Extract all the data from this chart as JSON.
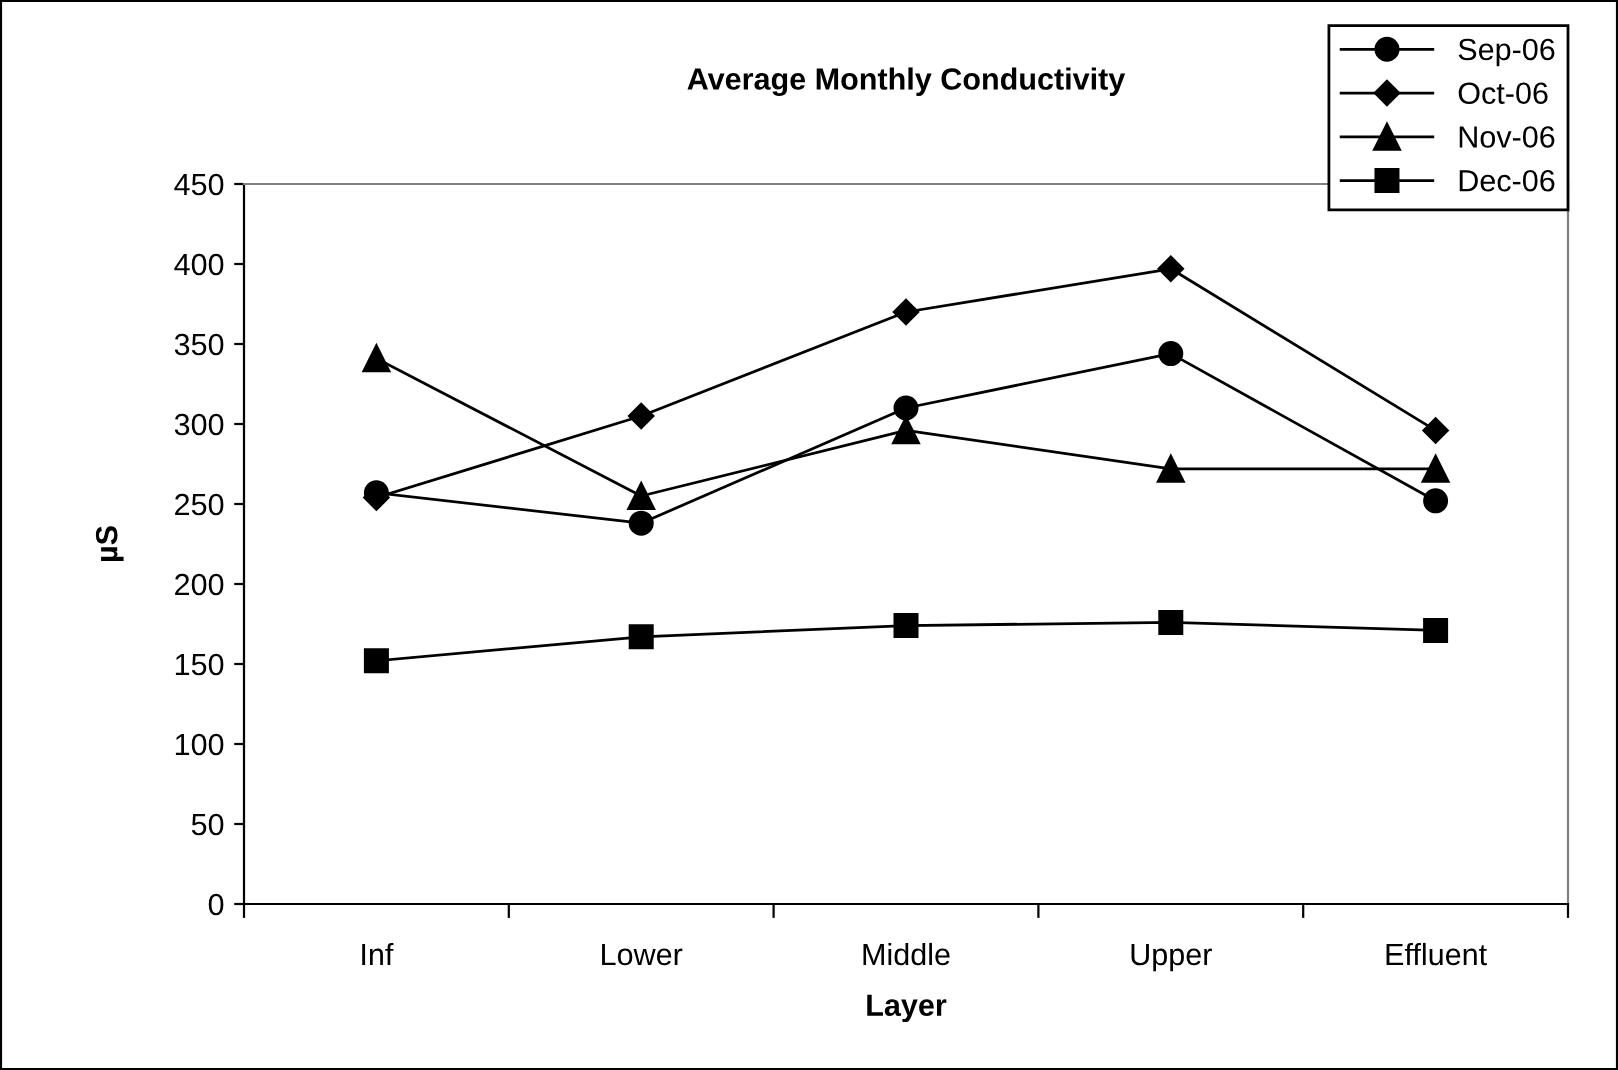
{
  "chart_data": {
    "type": "line",
    "title": "Average Monthly Conductivity",
    "xlabel": "Layer",
    "ylabel": "µS",
    "categories": [
      "Inf",
      "Lower",
      "Middle",
      "Upper",
      "Effluent"
    ],
    "series": [
      {
        "name": "Sep-06",
        "color": "#000000",
        "marker": "circle",
        "values": [
          257,
          238,
          310,
          344,
          252
        ]
      },
      {
        "name": "Oct-06",
        "color": "#000000",
        "marker": "diamond",
        "values": [
          254,
          305,
          370,
          397,
          296
        ]
      },
      {
        "name": "Nov-06",
        "color": "#000000",
        "marker": "triangle",
        "values": [
          341,
          255,
          296,
          272,
          272
        ]
      },
      {
        "name": "Dec-06",
        "color": "#000000",
        "marker": "square",
        "values": [
          152,
          167,
          174,
          176,
          171
        ]
      }
    ],
    "ylim": [
      0,
      450
    ],
    "yticks": [
      0,
      50,
      100,
      150,
      200,
      250,
      300,
      350,
      400,
      450
    ],
    "grid": false,
    "legend": "top right",
    "line_style": "solid"
  }
}
